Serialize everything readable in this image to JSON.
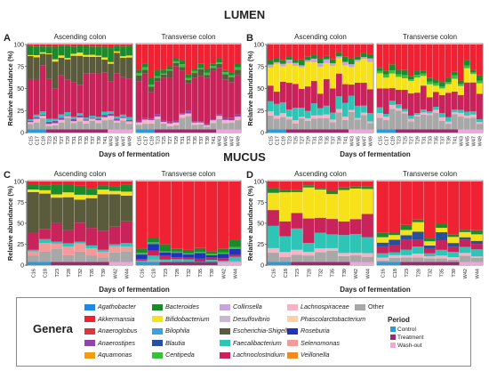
{
  "section_labels": [
    "LUMEN",
    "MUCUS"
  ],
  "panel_letters": [
    "A",
    "B",
    "C",
    "D"
  ],
  "colors": {
    "Agathobacter": "#1e88e5",
    "Akkermansia": "#ee2233",
    "Anaeroglobus": "#d9363e",
    "Anaerostipes": "#8e44ad",
    "Aquamonas": "#f39c12",
    "Bacteroides": "#1b8a2a",
    "Bifidobacterium": "#f7e11a",
    "Bilophila": "#3fa0d8",
    "Blautia": "#2a4f9e",
    "Centipeda": "#3bbf3b",
    "Collinsella": "#c9a6d9",
    "Desulfovibrio": "#c7b9d6",
    "Escherichia-Shigella": "#5a5a3c",
    "Faecalibacterium": "#2ec4b6",
    "Lachnoclostridium": "#c8245b",
    "Lachnospiraceae": "#f6b3c6",
    "Phascolarctobacterium": "#ffd0a8",
    "Roseburia": "#2233bb",
    "Selenomonas": "#f49a9a",
    "Veillonella": "#f28a1d",
    "Other": "#a8a8a8"
  },
  "legend": {
    "title": "Genera",
    "genera": [
      "Agathobacter",
      "Akkermansia",
      "Anaeroglobus",
      "Anaerostipes",
      "Aquamonas",
      "Bacteroides",
      "Bifidobacterium",
      "Bilophila",
      "Blautia",
      "Centipeda",
      "Collinsella",
      "Desulfovibrio",
      "Escherichia-Shigella",
      "Faecalibacterium",
      "Lachnoclostridium",
      "Lachnospiraceae",
      "Phascolarctobacterium",
      "Roseburia",
      "Selenomonas",
      "Veillonella",
      "Other"
    ],
    "period_title": "Period",
    "periods": [
      {
        "name": "Control",
        "color": "#2c9ad6"
      },
      {
        "name": "Treatment",
        "color": "#9c2b6d"
      },
      {
        "name": "Wash-out",
        "color": "#f1a6d9"
      }
    ]
  },
  "chart_data": [
    {
      "panel": "A",
      "section": "LUMEN",
      "type": "bar",
      "stacked": true,
      "ylabel": "Relative abundance (%)",
      "xlabel": "Days of fermentation",
      "ylim": [
        0,
        100
      ],
      "yticks": [
        0,
        25,
        50,
        75,
        100
      ],
      "days": [
        "C15",
        "C17",
        "C19",
        "T23",
        "T25",
        "T27",
        "T29",
        "T31",
        "T33",
        "T35",
        "T37",
        "T39",
        "T41",
        "W43",
        "W45",
        "W47",
        "W49"
      ],
      "period_counts": [
        3,
        10,
        4
      ],
      "subpanels": [
        {
          "title": "Ascending colon",
          "profile": "lumen_asc",
          "seed": 11
        },
        {
          "title": "Transverse colon",
          "profile": "lumen_trans",
          "seed": 23
        }
      ]
    },
    {
      "panel": "B",
      "section": "LUMEN",
      "type": "bar",
      "stacked": true,
      "ylabel": "Relative abundance (%)",
      "xlabel": "Days of fermentation",
      "ylim": [
        0,
        100
      ],
      "yticks": [
        0,
        25,
        50,
        75,
        100
      ],
      "days": [
        "C15",
        "C17",
        "C19",
        "T23",
        "T25",
        "T27",
        "T29",
        "T31",
        "T33",
        "T35",
        "T37",
        "T39",
        "T41",
        "W43",
        "W45",
        "W47",
        "W49"
      ],
      "period_counts": [
        3,
        10,
        4
      ],
      "subpanels": [
        {
          "title": "Ascending colon",
          "profile": "lumen_asc_b",
          "seed": 37
        },
        {
          "title": "Transverse colon",
          "profile": "lumen_trans_b",
          "seed": 41
        }
      ]
    },
    {
      "panel": "C",
      "section": "MUCUS",
      "type": "bar",
      "stacked": true,
      "ylabel": "Relative abundance (%)",
      "xlabel": "Days of fermentation",
      "ylim": [
        0,
        100
      ],
      "yticks": [
        0,
        25,
        50,
        75,
        100
      ],
      "days": [
        "C16",
        "C18",
        "T23",
        "T28",
        "T32",
        "T35",
        "T39",
        "W42",
        "W44"
      ],
      "period_counts": [
        2,
        5,
        2
      ],
      "subpanels": [
        {
          "title": "Ascending colon",
          "profile": "mucus_asc",
          "seed": 53
        },
        {
          "title": "Transverse colon",
          "profile": "mucus_trans",
          "seed": 59
        }
      ]
    },
    {
      "panel": "D",
      "section": "MUCUS",
      "type": "bar",
      "stacked": true,
      "ylabel": "Relative abundance (%)",
      "xlabel": "Days of fermentation",
      "ylim": [
        0,
        100
      ],
      "yticks": [
        0,
        25,
        50,
        75,
        100
      ],
      "days": [
        "C16",
        "C18",
        "T23",
        "T28",
        "T32",
        "T35",
        "T39",
        "W42",
        "W44"
      ],
      "period_counts": [
        2,
        5,
        2
      ],
      "subpanels": [
        {
          "title": "Ascending colon",
          "profile": "mucus_asc_d",
          "seed": 67
        },
        {
          "title": "Transverse colon",
          "profile": "mucus_trans_d",
          "seed": 71
        }
      ]
    }
  ],
  "profiles": {
    "lumen_asc": {
      "Other": 14,
      "Lachnospiraceae": 3,
      "Anaerostipes": 2,
      "Lachnoclostridium": 42,
      "Escherichia-Shigella": 22,
      "Bifidobacterium": 2,
      "Faecalibacterium": 3,
      "Bacteroides": 10,
      "Akkermansia": 2
    },
    "lumen_trans": {
      "Other": 12,
      "Lachnospiraceae": 3,
      "Anaerostipes": 2,
      "Lachnoclostridium": 45,
      "Escherichia-Shigella": 6,
      "Bacteroides": 5,
      "Centipeda": 2,
      "Akkermansia": 25
    },
    "lumen_asc_b": {
      "Other": 18,
      "Faecalibacterium": 12,
      "Lachnospiraceae": 3,
      "Lachnoclostridium": 22,
      "Bifidobacterium": 25,
      "Collinsella": 3,
      "Bacteroides": 5,
      "Akkermansia": 12
    },
    "lumen_trans_b": {
      "Other": 18,
      "Lachnospiraceae": 3,
      "Lachnoclostridium": 25,
      "Faecalibacterium": 4,
      "Bifidobacterium": 12,
      "Bacteroides": 5,
      "Centipeda": 3,
      "Akkermansia": 30
    },
    "mucus_asc": {
      "Other": 14,
      "Selenomonas": 8,
      "Lachnoclostridium": 18,
      "Escherichia-Shigella": 40,
      "Bifidobacterium": 4,
      "Faecalibacterium": 3,
      "Bacteroides": 8,
      "Akkermansia": 5
    },
    "mucus_trans": {
      "Other": 4,
      "Lachnoclostridium": 3,
      "Faecalibacterium": 3,
      "Roseburia": 5,
      "Bacteroides": 5,
      "Centipeda": 2,
      "Akkermansia": 78
    },
    "mucus_asc_d": {
      "Other": 15,
      "Faecalibacterium": 18,
      "Lachnoclostridium": 22,
      "Lachnospiraceae": 5,
      "Bifidobacterium": 28,
      "Bacteroides": 4,
      "Akkermansia": 8
    },
    "mucus_trans_d": {
      "Other": 8,
      "Lachnoclostridium": 10,
      "Lachnospiraceae": 3,
      "Blautia": 5,
      "Faecalibacterium": 6,
      "Bifidobacterium": 6,
      "Bacteroides": 4,
      "Akkermansia": 58
    }
  }
}
